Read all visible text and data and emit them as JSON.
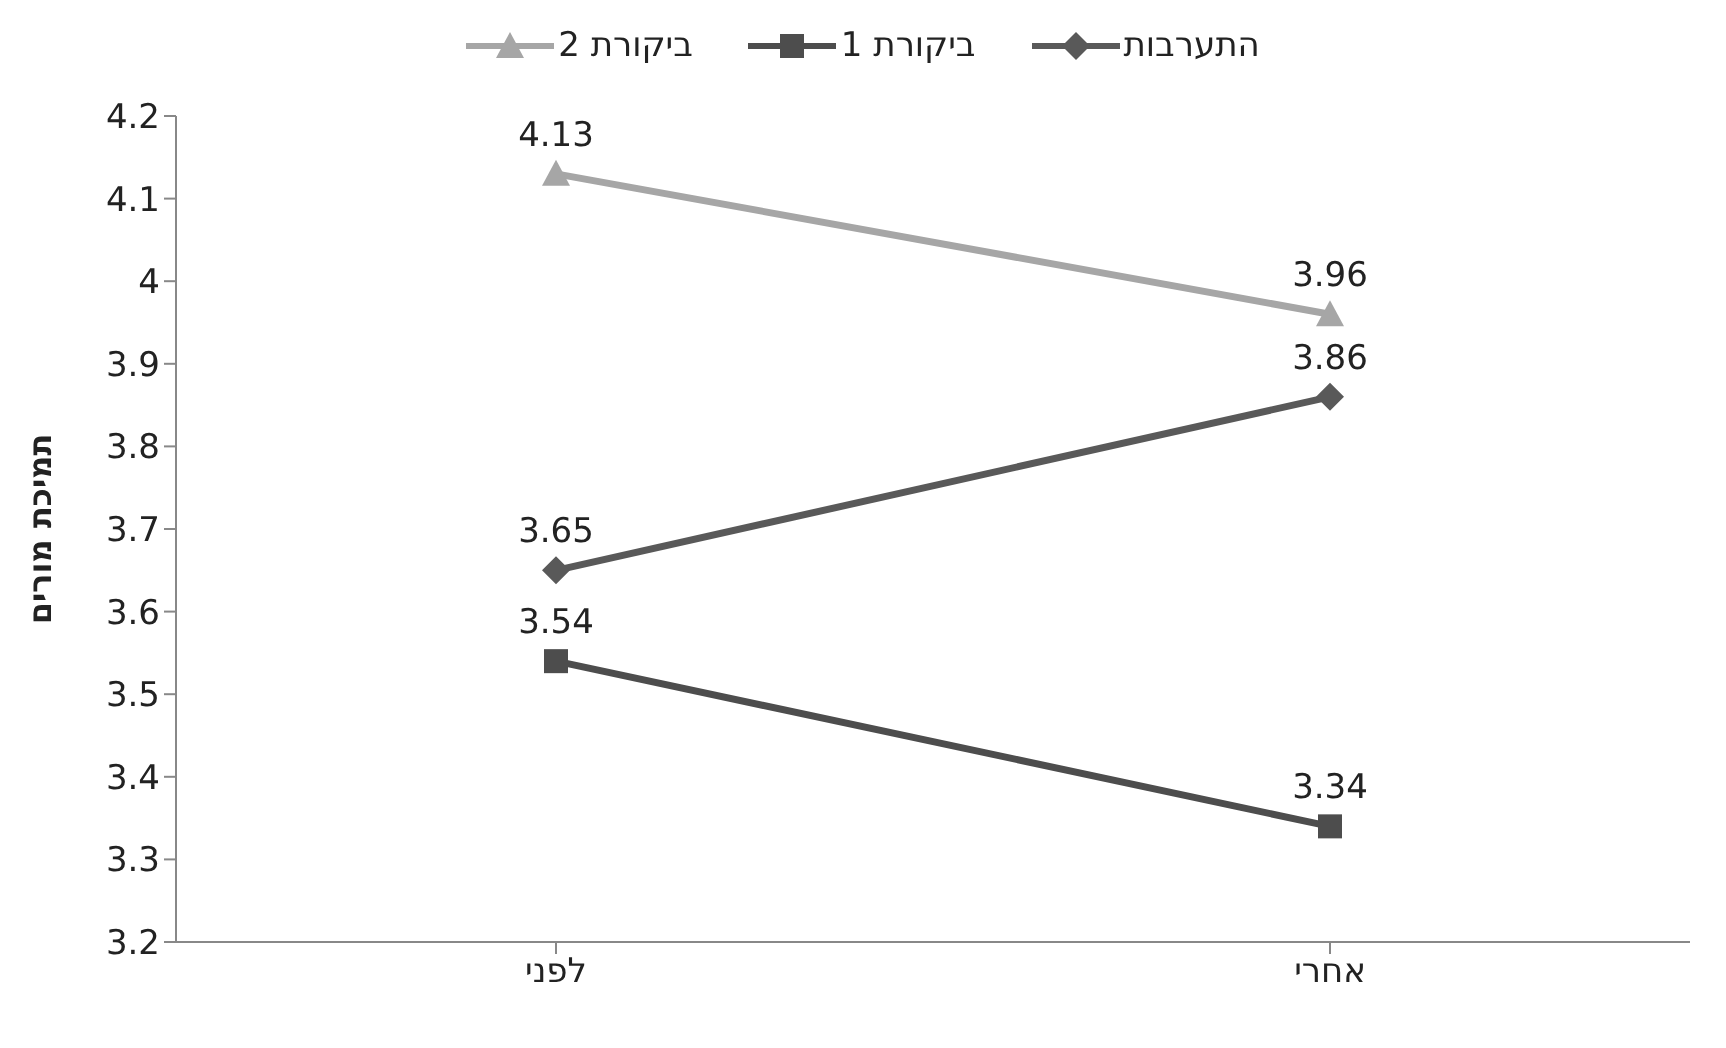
{
  "chart_data": {
    "type": "line",
    "ylabel": "תמיכת מורים",
    "categories": [
      "לפני",
      "אחרי"
    ],
    "series": [
      {
        "name": "התערבות",
        "color": "#595959",
        "marker": "diamond",
        "values": [
          3.65,
          3.86
        ]
      },
      {
        "name": "ביקורת 1",
        "color": "#4d4d4d",
        "marker": "square",
        "values": [
          3.54,
          3.34
        ]
      },
      {
        "name": "ביקורת 2",
        "color": "#a6a6a6",
        "marker": "triangle",
        "values": [
          4.13,
          3.96
        ]
      }
    ],
    "ylim": [
      3.2,
      4.2
    ],
    "yticks": [
      3.2,
      3.3,
      3.4,
      3.5,
      3.6,
      3.7,
      3.8,
      3.9,
      4,
      4.1,
      4.2
    ],
    "grid": false,
    "legend": "top",
    "data_labels": true,
    "line_style": "solid"
  }
}
